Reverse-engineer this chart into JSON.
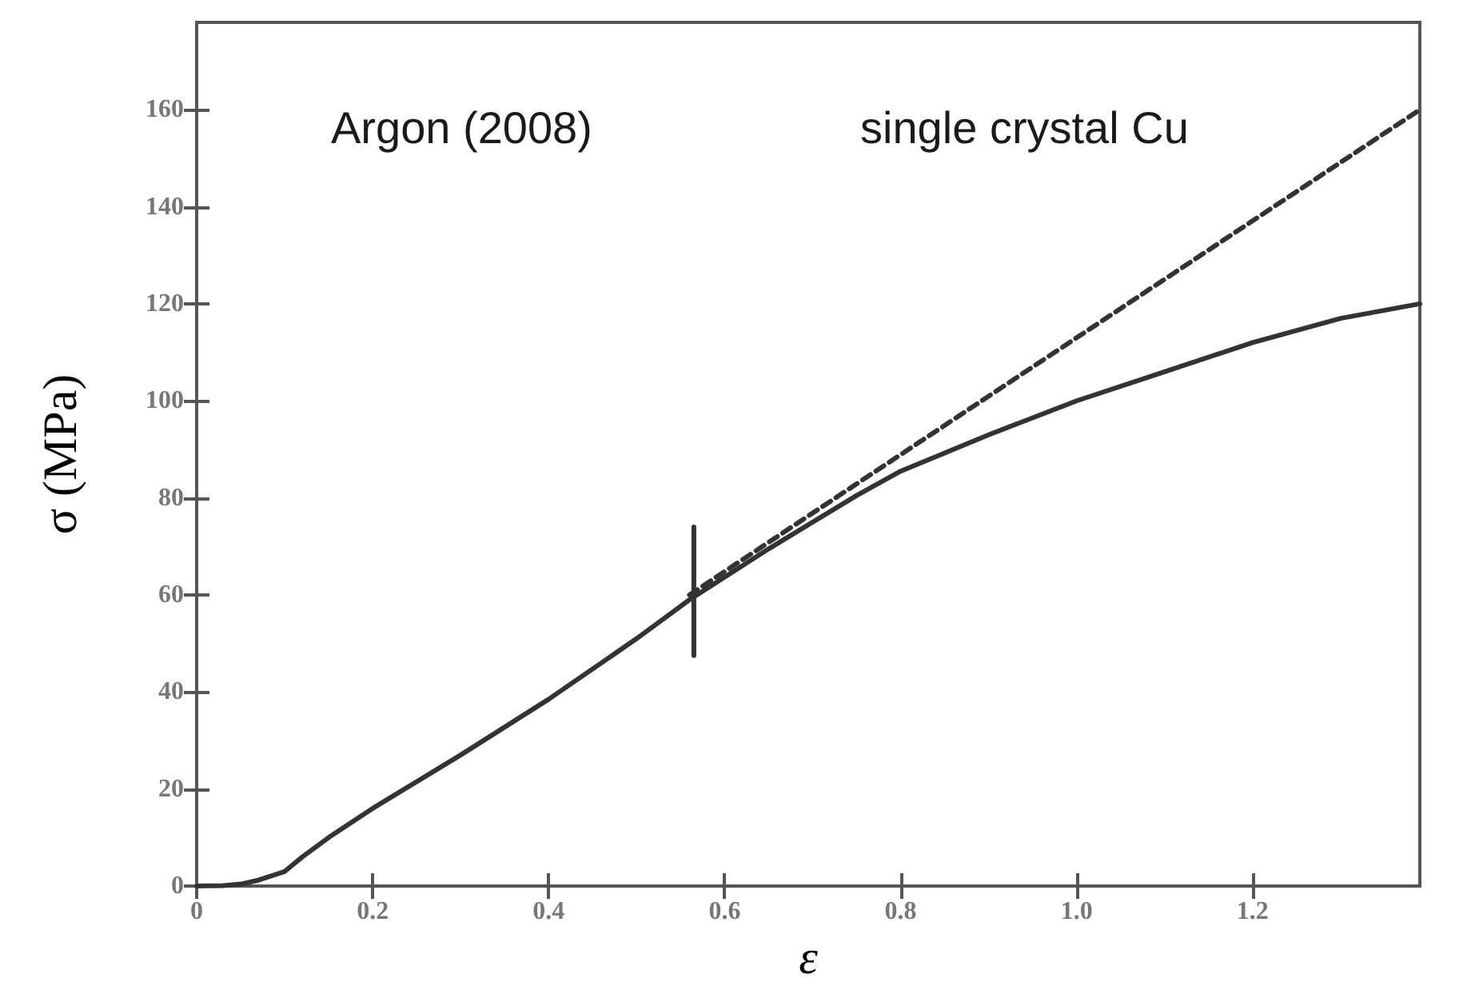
{
  "chart_data": {
    "type": "line",
    "xlabel": "ε",
    "ylabel": "σ (MPa)",
    "annotations": [
      "Argon (2008)",
      "single crystal Cu"
    ],
    "xlim": [
      0,
      1.39
    ],
    "xticks": [
      0,
      0.2,
      0.4,
      0.6,
      0.8,
      {
        "value": 1,
        "label": "1.0"
      },
      1.2
    ],
    "ylim": [
      0,
      178
    ],
    "yticks": [
      0,
      20,
      40,
      60,
      80,
      100,
      120,
      140,
      160
    ],
    "grid": false,
    "marker": "none",
    "series": [
      {
        "color": "#333333",
        "line_style": "solid",
        "x": [
          0,
          0.03,
          0.05,
          0.07,
          0.1,
          0.12,
          0.15,
          0.2,
          0.3,
          0.4,
          0.5,
          0.56,
          0.65,
          0.75,
          0.8,
          0.9,
          1.0,
          1.1,
          1.2,
          1.3,
          1.39
        ],
        "values": [
          0,
          0.1,
          0.4,
          1.2,
          3,
          6,
          10,
          16,
          27,
          38.5,
          51,
          59,
          69.5,
          80.5,
          85.5,
          93,
          100,
          106,
          112,
          117,
          120
        ]
      },
      {
        "color": "#333333",
        "line_style": "dashed",
        "x": [
          0.56,
          1.39
        ],
        "values": [
          60,
          160
        ]
      },
      {
        "color": "#333333",
        "line_style": "solid",
        "x": [
          0.565,
          0.565
        ],
        "values": [
          47.5,
          74
        ]
      }
    ]
  }
}
